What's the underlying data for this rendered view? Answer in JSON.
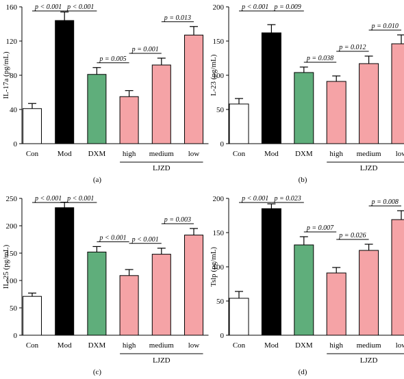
{
  "figure": {
    "group_bracket_label": "LJZD",
    "colors": {
      "Con": "#ffffff",
      "Mod": "#000000",
      "DXM": "#5fae7b",
      "LJZD": "#f5a3a6"
    }
  },
  "chart_data": [
    {
      "type": "bar",
      "panel_label": "(a)",
      "ylabel": "IL-17a (pg/mL)",
      "ylim": [
        0,
        160
      ],
      "yticks": [
        0,
        40,
        80,
        120,
        160
      ],
      "categories": [
        "Con",
        "Mod",
        "DXM",
        "high",
        "medium",
        "low"
      ],
      "group_label": "LJZD",
      "values": [
        41,
        144,
        81,
        55,
        92,
        127
      ],
      "errors": [
        6,
        10,
        8,
        7,
        8,
        10
      ],
      "significance": [
        {
          "from": 0,
          "to": 1,
          "label": "p < 0.001"
        },
        {
          "from": 1,
          "to": 2,
          "label": "p < 0.001"
        },
        {
          "from": 2,
          "to": 3,
          "label": "p = 0.005"
        },
        {
          "from": 3,
          "to": 4,
          "label": "p = 0.001"
        },
        {
          "from": 4,
          "to": 5,
          "label": "p = 0.013"
        }
      ]
    },
    {
      "type": "bar",
      "panel_label": "(b)",
      "ylabel": "L-23 (pg/mL)",
      "ylim": [
        0,
        200
      ],
      "yticks": [
        0,
        50,
        100,
        150,
        200
      ],
      "categories": [
        "Con",
        "Mod",
        "DXM",
        "high",
        "medium",
        "low"
      ],
      "group_label": "LJZD",
      "values": [
        58,
        162,
        104,
        91,
        117,
        146
      ],
      "errors": [
        8,
        12,
        8,
        8,
        11,
        13
      ],
      "significance": [
        {
          "from": 0,
          "to": 1,
          "label": "p < 0.001"
        },
        {
          "from": 1,
          "to": 2,
          "label": "p = 0.009"
        },
        {
          "from": 2,
          "to": 3,
          "label": "p = 0.038"
        },
        {
          "from": 3,
          "to": 4,
          "label": "p = 0.012"
        },
        {
          "from": 4,
          "to": 5,
          "label": "p = 0.010"
        }
      ]
    },
    {
      "type": "bar",
      "panel_label": "(c)",
      "ylabel": "IL-25 (pg/mL)",
      "ylim": [
        0,
        250
      ],
      "yticks": [
        0,
        50,
        100,
        150,
        200,
        250
      ],
      "categories": [
        "Con",
        "Mod",
        "DXM",
        "high",
        "medium",
        "low"
      ],
      "group_label": "LJZD",
      "values": [
        71,
        233,
        152,
        109,
        148,
        183
      ],
      "errors": [
        6,
        10,
        10,
        11,
        11,
        12
      ],
      "significance": [
        {
          "from": 0,
          "to": 1,
          "label": "p < 0.001"
        },
        {
          "from": 1,
          "to": 2,
          "label": "p < 0.001"
        },
        {
          "from": 2,
          "to": 3,
          "label": "p < 0.001"
        },
        {
          "from": 3,
          "to": 4,
          "label": "p < 0.001"
        },
        {
          "from": 4,
          "to": 5,
          "label": "p = 0.003"
        }
      ]
    },
    {
      "type": "bar",
      "panel_label": "(d)",
      "ylabel": "Tslp (pg/mL)",
      "ylim": [
        0,
        200
      ],
      "yticks": [
        0,
        50,
        100,
        150,
        200
      ],
      "categories": [
        "Con",
        "Mod",
        "DXM",
        "high",
        "medium",
        "low"
      ],
      "group_label": "LJZD",
      "values": [
        54,
        185,
        132,
        91,
        124,
        169
      ],
      "errors": [
        10,
        7,
        12,
        8,
        9,
        13
      ],
      "significance": [
        {
          "from": 0,
          "to": 1,
          "label": "p < 0.001"
        },
        {
          "from": 1,
          "to": 2,
          "label": "p = 0.023"
        },
        {
          "from": 2,
          "to": 3,
          "label": "p = 0.007"
        },
        {
          "from": 3,
          "to": 4,
          "label": "p = 0.026"
        },
        {
          "from": 4,
          "to": 5,
          "label": "p = 0.008"
        }
      ]
    }
  ]
}
